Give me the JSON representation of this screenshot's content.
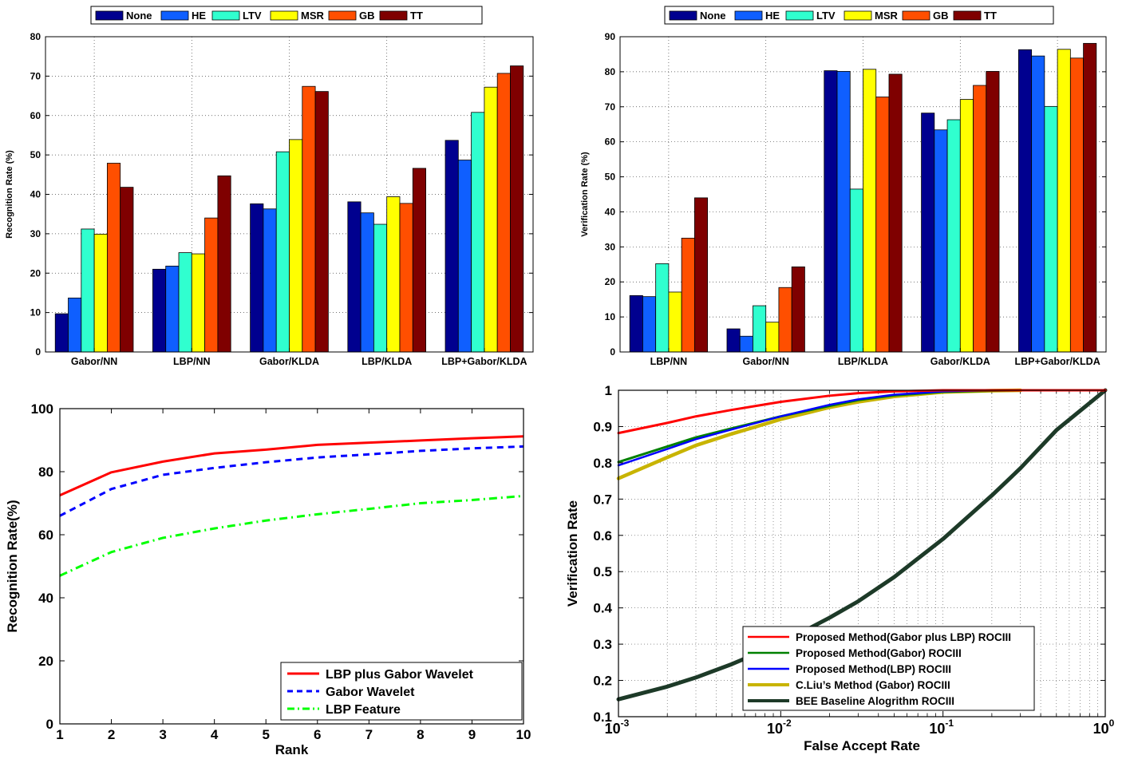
{
  "chart_data": [
    {
      "type": "bar",
      "ylabel": "Recognition Rate (%)",
      "xlabel": "",
      "ylim": [
        0,
        80
      ],
      "yticks": [
        0,
        10,
        20,
        30,
        40,
        50,
        60,
        70,
        80
      ],
      "grid": true,
      "legend_position": "top-center",
      "categories": [
        "Gabor/NN",
        "LBP/NN",
        "Gabor/KLDA",
        "LBP/KLDA",
        "LBP+Gabor/KLDA"
      ],
      "series": [
        {
          "name": "None",
          "color": "#00008f",
          "values": [
            9.7,
            21.0,
            37.6,
            38.1,
            53.7
          ]
        },
        {
          "name": "HE",
          "color": "#0f5fff",
          "values": [
            13.7,
            21.8,
            36.3,
            35.3,
            48.7
          ]
        },
        {
          "name": "LTV",
          "color": "#30ffcf",
          "values": [
            31.2,
            25.2,
            50.8,
            32.4,
            60.8
          ]
        },
        {
          "name": "MSR",
          "color": "#ffff00",
          "values": [
            29.9,
            24.9,
            53.9,
            39.4,
            67.2
          ]
        },
        {
          "name": "GB",
          "color": "#ff4f00",
          "values": [
            47.9,
            34.0,
            67.4,
            37.7,
            70.7
          ]
        },
        {
          "name": "TT",
          "color": "#7f0000",
          "values": [
            41.8,
            44.7,
            66.1,
            46.6,
            72.6
          ]
        }
      ]
    },
    {
      "type": "bar",
      "ylabel": "Verification Rate (%)",
      "xlabel": "",
      "ylim": [
        0,
        90
      ],
      "yticks": [
        0,
        10,
        20,
        30,
        40,
        50,
        60,
        70,
        80,
        90
      ],
      "grid": true,
      "legend_position": "top-center",
      "categories": [
        "LBP/NN",
        "Gabor/NN",
        "LBP/KLDA",
        "Gabor/KLDA",
        "LBP+Gabor/KLDA"
      ],
      "series": [
        {
          "name": "None",
          "color": "#00008f",
          "values": [
            16.1,
            6.6,
            80.3,
            68.2,
            86.3
          ]
        },
        {
          "name": "HE",
          "color": "#0f5fff",
          "values": [
            15.8,
            4.5,
            80.1,
            63.4,
            84.5
          ]
        },
        {
          "name": "LTV",
          "color": "#30ffcf",
          "values": [
            25.2,
            13.2,
            46.5,
            66.3,
            70.1
          ]
        },
        {
          "name": "MSR",
          "color": "#ffff00",
          "values": [
            17.1,
            8.5,
            80.7,
            72.1,
            86.4
          ]
        },
        {
          "name": "GB",
          "color": "#ff4f00",
          "values": [
            32.5,
            18.4,
            72.8,
            76.1,
            83.9
          ]
        },
        {
          "name": "TT",
          "color": "#7f0000",
          "values": [
            44.0,
            24.3,
            79.3,
            80.1,
            88.1
          ]
        }
      ]
    },
    {
      "type": "line",
      "xlabel": "Rank",
      "ylabel": "Recognition Rate(%)",
      "xlim": [
        1,
        10
      ],
      "ylim": [
        0,
        100
      ],
      "xticks": [
        1,
        2,
        3,
        4,
        5,
        6,
        7,
        8,
        9,
        10
      ],
      "yticks": [
        0,
        20,
        40,
        60,
        80,
        100
      ],
      "grid": false,
      "legend_position": "bottom-right",
      "x": [
        1,
        2,
        3,
        4,
        5,
        6,
        7,
        8,
        9,
        10
      ],
      "series": [
        {
          "name": "LBP plus Gabor Wavelet",
          "color": "#ff0000",
          "style": "solid",
          "values": [
            72.5,
            79.8,
            83.2,
            85.8,
            87.0,
            88.5,
            89.2,
            89.9,
            90.6,
            91.2
          ]
        },
        {
          "name": "Gabor Wavelet",
          "color": "#0000ff",
          "style": "dashed",
          "values": [
            66.0,
            74.5,
            79.0,
            81.2,
            83.0,
            84.5,
            85.5,
            86.6,
            87.4,
            88.0
          ]
        },
        {
          "name": "LBP Feature",
          "color": "#00ff00",
          "style": "dashdot",
          "values": [
            47.0,
            54.5,
            59.0,
            62.0,
            64.5,
            66.5,
            68.2,
            70.0,
            71.0,
            72.3
          ]
        }
      ]
    },
    {
      "type": "line",
      "xlabel": "False Accept Rate",
      "ylabel": "Verification Rate",
      "xscale": "log",
      "xlim": [
        0.001,
        1
      ],
      "ylim": [
        0.1,
        1
      ],
      "xticks": [
        0.001,
        0.01,
        0.1,
        1
      ],
      "xtick_bases": [
        "10",
        "10",
        "10",
        "10"
      ],
      "xtick_exponents": [
        "-3",
        "-2",
        "-1",
        "0"
      ],
      "yticks": [
        0.1,
        0.2,
        0.3,
        0.4,
        0.5,
        0.6,
        0.7,
        0.8,
        0.9,
        1
      ],
      "grid": true,
      "legend_position": "bottom-right",
      "series": [
        {
          "name": "Proposed Method(Gabor plus LBP) ROCIII",
          "color": "#ff0000",
          "x": [
            0.001,
            0.002,
            0.003,
            0.005,
            0.01,
            0.02,
            0.03,
            0.05,
            0.1,
            0.2,
            0.3,
            0.5,
            1
          ],
          "values": [
            0.882,
            0.91,
            0.928,
            0.946,
            0.968,
            0.985,
            0.992,
            0.997,
            1.0,
            1.0,
            1.0,
            1.0,
            1.0
          ]
        },
        {
          "name": "Proposed Method(Gabor) ROCIII",
          "color": "#008000",
          "x": [
            0.001,
            0.002,
            0.003,
            0.005,
            0.01,
            0.02,
            0.03,
            0.05,
            0.1,
            0.2,
            0.3
          ],
          "values": [
            0.802,
            0.845,
            0.87,
            0.895,
            0.928,
            0.957,
            0.973,
            0.986,
            0.996,
            0.999,
            1.0
          ]
        },
        {
          "name": "Proposed Method(LBP) ROCIII",
          "color": "#0000ff",
          "x": [
            0.001,
            0.002,
            0.003,
            0.005,
            0.01,
            0.02,
            0.03,
            0.05,
            0.1,
            0.2,
            0.3,
            0.5,
            1
          ],
          "values": [
            0.793,
            0.838,
            0.865,
            0.892,
            0.928,
            0.96,
            0.975,
            0.988,
            0.997,
            1.0,
            1.0,
            1.0,
            1.0
          ]
        },
        {
          "name": "C.Liu’s Method (Gabor)  ROCIII",
          "color": "#c8b400",
          "x": [
            0.001,
            0.002,
            0.003,
            0.005,
            0.01,
            0.02,
            0.03,
            0.05,
            0.1,
            0.2,
            0.3
          ],
          "values": [
            0.757,
            0.815,
            0.848,
            0.88,
            0.92,
            0.953,
            0.968,
            0.983,
            0.995,
            0.999,
            1.0
          ]
        },
        {
          "name": "BEE Baseline Alogrithm ROCIII",
          "color": "#1d3a28",
          "x": [
            0.001,
            0.002,
            0.003,
            0.005,
            0.01,
            0.02,
            0.03,
            0.05,
            0.1,
            0.2,
            0.3,
            0.5,
            1
          ],
          "values": [
            0.148,
            0.183,
            0.208,
            0.245,
            0.302,
            0.373,
            0.418,
            0.485,
            0.59,
            0.71,
            0.785,
            0.89,
            1.0
          ]
        }
      ]
    }
  ]
}
